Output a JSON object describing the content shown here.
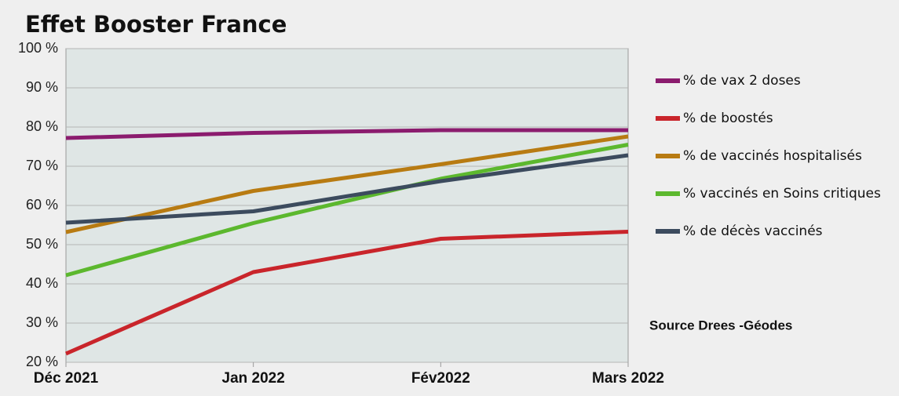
{
  "chart_data": {
    "type": "line",
    "title": "Effet Booster France",
    "categories": [
      "Déc 2021",
      "Jan 2022",
      "Fév2022",
      "Mars 2022"
    ],
    "series": [
      {
        "name": "% de vax 2 doses",
        "color": "#8b1c6e",
        "values": [
          77.2,
          78.5,
          79.2,
          79.2
        ]
      },
      {
        "name": "% de boostés",
        "color": "#c9252b",
        "values": [
          22.2,
          43,
          51.5,
          53.3
        ]
      },
      {
        "name": "% de vaccinés hospitalisés",
        "color": "#b87b12",
        "values": [
          53.2,
          63.7,
          70.5,
          77.6
        ]
      },
      {
        "name": "% vaccinés en Soins critiques",
        "color": "#5cb82e",
        "values": [
          42.2,
          55.5,
          66.8,
          75.5
        ]
      },
      {
        "name": "% de décès vaccinés",
        "color": "#3c4b5e",
        "values": [
          55.6,
          58.5,
          66.2,
          72.8
        ]
      }
    ],
    "ylim": [
      20,
      100
    ],
    "yticks": [
      {
        "value": 20,
        "label": "20 %"
      },
      {
        "value": 30,
        "label": "30 %"
      },
      {
        "value": 40,
        "label": "40 %"
      },
      {
        "value": 50,
        "label": "50 %"
      },
      {
        "value": 60,
        "label": "60 %"
      },
      {
        "value": 70,
        "label": "70 %"
      },
      {
        "value": 80,
        "label": "80 %"
      },
      {
        "value": 90,
        "label": "90 %"
      },
      {
        "value": 100,
        "label": "100 %"
      }
    ],
    "grid": true,
    "legend": "right",
    "annotation": "Source Drees -Géodes"
  }
}
